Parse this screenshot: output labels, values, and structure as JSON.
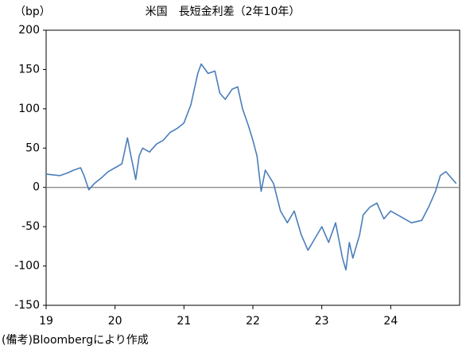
{
  "chart_data": {
    "type": "line",
    "title": "米国　長短金利差（2年10年）",
    "y_unit_label": "（bp）",
    "footnote": "(備考)Bloombergにより作成",
    "x": [
      19.0,
      19.1,
      19.2,
      19.3,
      19.4,
      19.5,
      19.55,
      19.62,
      19.7,
      19.8,
      19.9,
      20.0,
      20.1,
      20.18,
      20.22,
      20.3,
      20.35,
      20.4,
      20.5,
      20.6,
      20.7,
      20.8,
      20.9,
      21.0,
      21.1,
      21.2,
      21.25,
      21.35,
      21.45,
      21.52,
      21.6,
      21.7,
      21.78,
      21.85,
      21.93,
      22.0,
      22.06,
      22.12,
      22.18,
      22.3,
      22.4,
      22.5,
      22.6,
      22.7,
      22.8,
      22.9,
      23.0,
      23.1,
      23.2,
      23.3,
      23.35,
      23.4,
      23.45,
      23.55,
      23.6,
      23.7,
      23.8,
      23.9,
      24.0,
      24.1,
      24.2,
      24.3,
      24.45,
      24.55,
      24.65,
      24.72,
      24.8,
      24.88,
      24.95
    ],
    "series": [
      {
        "color": "#4a7ebb",
        "values": [
          17,
          16,
          15,
          18,
          22,
          25,
          15,
          -3,
          5,
          12,
          20,
          25,
          30,
          63,
          45,
          10,
          40,
          50,
          45,
          55,
          60,
          70,
          75,
          82,
          105,
          145,
          157,
          145,
          148,
          120,
          112,
          125,
          128,
          100,
          80,
          60,
          40,
          -5,
          22,
          5,
          -30,
          -45,
          -30,
          -60,
          -80,
          -65,
          -50,
          -70,
          -45,
          -90,
          -105,
          -70,
          -90,
          -60,
          -35,
          -25,
          -20,
          -40,
          -30,
          -35,
          -40,
          -45,
          -42,
          -25,
          -5,
          15,
          20,
          12,
          5
        ]
      }
    ],
    "xlim": [
      19,
      25
    ],
    "xticks": [
      19,
      20,
      21,
      22,
      23,
      24
    ],
    "ylim": [
      -150,
      200
    ],
    "yticks": [
      -150,
      -100,
      -50,
      0,
      50,
      100,
      150,
      200
    ],
    "zero_line": true
  }
}
